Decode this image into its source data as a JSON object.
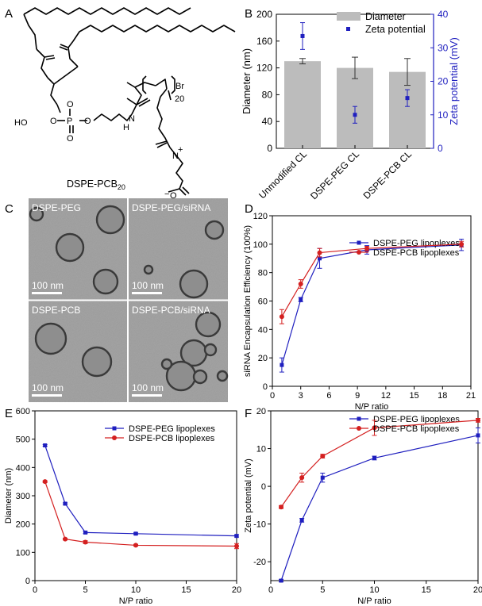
{
  "panels": {
    "A": {
      "label": "A",
      "compound_name": "DSPE-PCB",
      "compound_subscript": "20",
      "atoms": {
        "ho": "HO",
        "p": "P",
        "o": "O",
        "h": "H",
        "n": "N",
        "br": "Br",
        "plus": "+",
        "minus": "−",
        "sub20": "20"
      }
    },
    "B": {
      "label": "B"
    },
    "C": {
      "label": "C",
      "images": [
        {
          "title": "DSPE-PEG",
          "scale": "100 nm"
        },
        {
          "title": "DSPE-PEG/siRNA",
          "scale": "100 nm"
        },
        {
          "title": "DSPE-PCB",
          "scale": "100 nm"
        },
        {
          "title": "DSPE-PCB/siRNA",
          "scale": "100 nm"
        }
      ]
    },
    "D": {
      "label": "D"
    },
    "E": {
      "label": "E"
    },
    "F": {
      "label": "F"
    }
  },
  "colors": {
    "blue": "#1f1fbf",
    "red": "#d42020",
    "gray": "#bcbcbc"
  },
  "chart_data": [
    {
      "panel": "B",
      "type": "bar",
      "categories": [
        "Unmodified CL",
        "DSPE-PEG CL",
        "DSPE-PCB CL"
      ],
      "series": [
        {
          "name": "Diameter",
          "type": "bar",
          "axis": "left",
          "values": [
            130,
            120,
            114
          ],
          "errors": [
            4,
            16,
            20
          ]
        },
        {
          "name": "Zeta potential",
          "type": "scatter",
          "axis": "right",
          "values": [
            33.5,
            10,
            15
          ],
          "errors": [
            4,
            2.5,
            2.5
          ]
        }
      ],
      "ylabel": "Diameter (nm)",
      "ylim": [
        0,
        200
      ],
      "yticks": [
        0,
        40,
        80,
        120,
        160,
        200
      ],
      "y2label": "Zeta potential (mV)",
      "y2lim": [
        0,
        40
      ],
      "y2ticks": [
        0,
        10,
        20,
        30,
        40
      ],
      "legend": "top-right"
    },
    {
      "panel": "D",
      "type": "line",
      "x": [
        1,
        3,
        5,
        10,
        20
      ],
      "series": [
        {
          "name": "DSPE-PEG lipoplexes",
          "values": [
            15,
            61,
            90,
            96,
            99.5
          ],
          "errors": [
            5,
            1.5,
            7,
            3,
            4
          ]
        },
        {
          "name": "DSPE-PCB lipoplexes",
          "values": [
            49,
            72,
            94,
            97,
            100
          ],
          "errors": [
            5,
            3,
            3,
            1.5,
            2
          ]
        }
      ],
      "xlabel": "N/P ratio",
      "ylabel": "siRNA Encapsulation Efficiency (100%)",
      "xlim": [
        0,
        21
      ],
      "ylim": [
        0,
        120
      ],
      "xticks": [
        0,
        3,
        6,
        9,
        12,
        15,
        18,
        21
      ],
      "yticks": [
        0,
        20,
        40,
        60,
        80,
        100,
        120
      ],
      "legend": "top-right"
    },
    {
      "panel": "E",
      "type": "line",
      "x": [
        1,
        3,
        5,
        10,
        20
      ],
      "series": [
        {
          "name": "DSPE-PEG lipoplexes",
          "values": [
            478,
            272,
            170,
            166,
            158
          ],
          "errors": [
            3,
            3,
            4,
            3,
            4
          ]
        },
        {
          "name": "DSPE-PCB lipoplexes",
          "values": [
            350,
            147,
            136,
            125,
            122
          ],
          "errors": [
            3,
            3,
            5,
            3,
            9
          ]
        }
      ],
      "xlabel": "N/P ratio",
      "ylabel": "Diameter (nm)",
      "xlim": [
        0,
        20
      ],
      "ylim": [
        0,
        600
      ],
      "xticks": [
        0,
        5,
        10,
        15,
        20
      ],
      "yticks": [
        0,
        100,
        200,
        300,
        400,
        500,
        600
      ],
      "legend": "top-right"
    },
    {
      "panel": "F",
      "type": "line",
      "x": [
        1,
        3,
        5,
        10,
        20
      ],
      "series": [
        {
          "name": "DSPE-PEG lipoplexes",
          "values": [
            -25,
            -9,
            2.3,
            7.5,
            13.5
          ],
          "errors": [
            0.3,
            0.5,
            1.2,
            0.5,
            2
          ]
        },
        {
          "name": "DSPE-PCB lipoplexes",
          "values": [
            -5.5,
            2.3,
            8,
            15.5,
            17.5
          ],
          "errors": [
            0.4,
            1.2,
            0.5,
            2,
            0.5
          ]
        }
      ],
      "xlabel": "N/P ratio",
      "ylabel": "Zeta potential (mV)",
      "xlim": [
        0,
        20
      ],
      "ylim": [
        -25,
        20
      ],
      "xticks": [
        0,
        5,
        10,
        15,
        20
      ],
      "yticks": [
        -20,
        -10,
        0,
        10,
        20
      ],
      "legend": "top-right"
    }
  ]
}
